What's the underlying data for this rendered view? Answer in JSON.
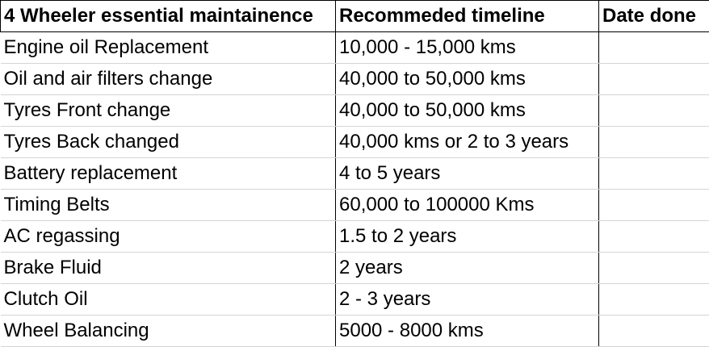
{
  "table": {
    "headers": [
      "4 Wheeler essential maintainence",
      "Recommeded timeline",
      "Date done"
    ],
    "rows": [
      {
        "item": "Engine oil Replacement",
        "timeline": "10,000 - 15,000 kms",
        "date": ""
      },
      {
        "item": "Oil and air filters change",
        "timeline": "40,000 to 50,000 kms",
        "date": ""
      },
      {
        "item": "Tyres Front change",
        "timeline": "40,000 to 50,000 kms",
        "date": ""
      },
      {
        "item": "Tyres Back changed",
        "timeline": "40,000 kms or 2 to 3 years",
        "date": ""
      },
      {
        "item": "Battery replacement",
        "timeline": "4 to 5 years",
        "date": ""
      },
      {
        "item": "Timing Belts",
        "timeline": "60,000 to 100000 Kms",
        "date": ""
      },
      {
        "item": "AC regassing",
        "timeline": "1.5 to 2 years",
        "date": ""
      },
      {
        "item": "Brake Fluid",
        "timeline": "2 years",
        "date": ""
      },
      {
        "item": "Clutch Oil",
        "timeline": "2 - 3 years",
        "date": ""
      },
      {
        "item": "Wheel Balancing",
        "timeline": "5000 - 8000 kms",
        "date": ""
      }
    ]
  }
}
